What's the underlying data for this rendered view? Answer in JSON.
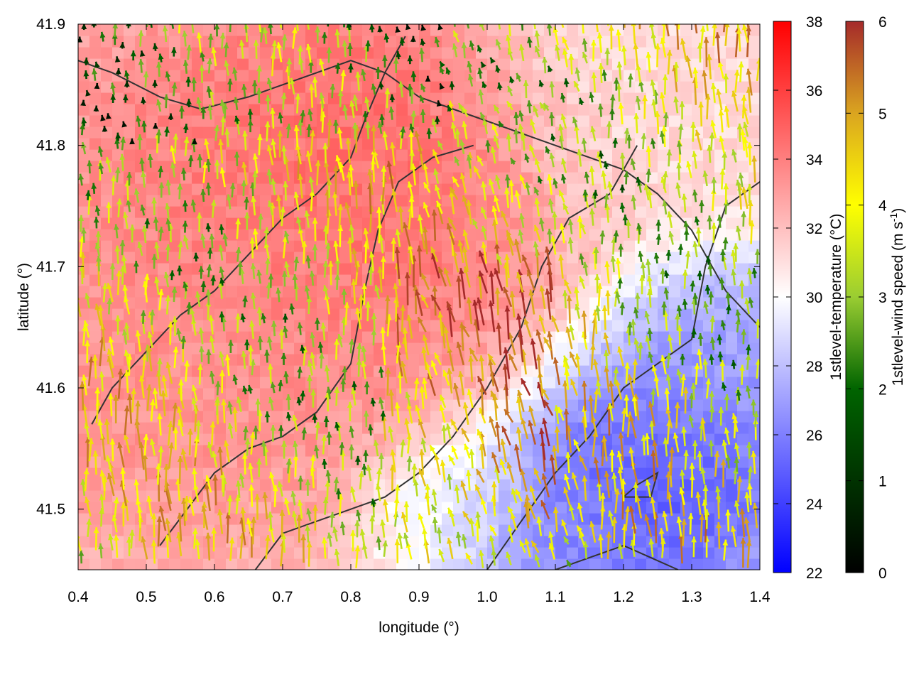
{
  "chart_data": {
    "type": "heatmap",
    "description": "Surface temperature field with wind vectors and boundary contours",
    "xlabel": "longitude (°)",
    "ylabel": "latitude (°)",
    "xlim": [
      0.4,
      1.4
    ],
    "ylim": [
      41.45,
      41.9
    ],
    "x_ticks": [
      "0.4",
      "0.5",
      "0.6",
      "0.7",
      "0.8",
      "0.9",
      "1.0",
      "1.1",
      "1.2",
      "1.3",
      "1.4"
    ],
    "y_ticks": [
      "41.5",
      "41.6",
      "41.7",
      "41.8",
      "41.9"
    ],
    "temperature_colorbar": {
      "label": "1stlevel-temperature (°C)",
      "range": [
        22,
        38
      ],
      "ticks": [
        "22",
        "24",
        "26",
        "28",
        "30",
        "32",
        "34",
        "36",
        "38"
      ],
      "colors": [
        "#0000ff",
        "#ffffff",
        "#ff0000"
      ]
    },
    "wind_colorbar": {
      "label": "1stlevel-wind speed (m s",
      "label_sup": "-1",
      "label_end": ")",
      "range": [
        0,
        6
      ],
      "ticks": [
        "0",
        "1",
        "2",
        "3",
        "4",
        "5",
        "6"
      ],
      "colors": [
        "#000000",
        "#006400",
        "#9acd32",
        "#ffff00",
        "#daa520",
        "#a52a2a"
      ]
    },
    "temperature_regions": [
      {
        "lon": 0.72,
        "lat": 41.75,
        "temp": 34.5,
        "spread": 0.28
      },
      {
        "lon": 0.55,
        "lat": 41.6,
        "temp": 33.5,
        "spread": 0.22
      },
      {
        "lon": 0.85,
        "lat": 41.8,
        "temp": 35.0,
        "spread": 0.18
      },
      {
        "lon": 1.25,
        "lat": 41.52,
        "temp": 24.0,
        "spread": 0.16
      },
      {
        "lon": 1.35,
        "lat": 41.62,
        "temp": 26.5,
        "spread": 0.14
      },
      {
        "lon": 1.1,
        "lat": 41.47,
        "temp": 26.0,
        "spread": 0.12
      },
      {
        "lon": 1.2,
        "lat": 41.85,
        "temp": 31.0,
        "spread": 0.2
      },
      {
        "lon": 0.95,
        "lat": 41.5,
        "temp": 29.5,
        "spread": 0.1
      }
    ],
    "contours": [
      [
        [
          0.4,
          41.87
        ],
        [
          0.45,
          41.86
        ],
        [
          0.52,
          41.84
        ],
        [
          0.58,
          41.83
        ],
        [
          0.65,
          41.84
        ],
        [
          0.7,
          41.85
        ],
        [
          0.75,
          41.86
        ],
        [
          0.8,
          41.87
        ],
        [
          0.85,
          41.86
        ],
        [
          0.9,
          41.84
        ],
        [
          0.95,
          41.83
        ],
        [
          1.0,
          41.82
        ],
        [
          1.05,
          41.81
        ],
        [
          1.1,
          41.8
        ],
        [
          1.15,
          41.79
        ],
        [
          1.2,
          41.78
        ],
        [
          1.25,
          41.76
        ],
        [
          1.3,
          41.73
        ],
        [
          1.35,
          41.68
        ],
        [
          1.4,
          41.65
        ]
      ],
      [
        [
          0.42,
          41.57
        ],
        [
          0.45,
          41.6
        ],
        [
          0.5,
          41.63
        ],
        [
          0.55,
          41.66
        ],
        [
          0.6,
          41.68
        ],
        [
          0.65,
          41.71
        ],
        [
          0.7,
          41.74
        ],
        [
          0.75,
          41.76
        ],
        [
          0.8,
          41.79
        ],
        [
          0.82,
          41.82
        ],
        [
          0.85,
          41.86
        ],
        [
          0.88,
          41.89
        ]
      ],
      [
        [
          0.52,
          41.47
        ],
        [
          0.56,
          41.5
        ],
        [
          0.6,
          41.53
        ],
        [
          0.65,
          41.55
        ],
        [
          0.7,
          41.56
        ],
        [
          0.75,
          41.58
        ],
        [
          0.8,
          41.62
        ],
        [
          0.82,
          41.68
        ],
        [
          0.84,
          41.73
        ],
        [
          0.87,
          41.77
        ],
        [
          0.92,
          41.79
        ],
        [
          0.98,
          41.8
        ]
      ],
      [
        [
          0.66,
          41.45
        ],
        [
          0.7,
          41.48
        ],
        [
          0.75,
          41.49
        ],
        [
          0.8,
          41.5
        ],
        [
          0.85,
          41.51
        ],
        [
          0.9,
          41.53
        ],
        [
          0.95,
          41.56
        ],
        [
          1.0,
          41.6
        ],
        [
          1.05,
          41.65
        ],
        [
          1.08,
          41.7
        ],
        [
          1.12,
          41.74
        ],
        [
          1.18,
          41.76
        ],
        [
          1.22,
          41.8
        ]
      ],
      [
        [
          1.0,
          41.45
        ],
        [
          1.05,
          41.49
        ],
        [
          1.1,
          41.53
        ],
        [
          1.15,
          41.56
        ],
        [
          1.2,
          41.6
        ],
        [
          1.25,
          41.62
        ],
        [
          1.3,
          41.64
        ],
        [
          1.32,
          41.7
        ],
        [
          1.35,
          41.75
        ],
        [
          1.4,
          41.77
        ]
      ],
      [
        [
          1.1,
          41.45
        ],
        [
          1.15,
          41.46
        ],
        [
          1.2,
          41.47
        ],
        [
          1.24,
          41.46
        ],
        [
          1.28,
          41.45
        ]
      ],
      [
        [
          1.2,
          41.51
        ],
        [
          1.22,
          41.52
        ],
        [
          1.25,
          41.53
        ],
        [
          1.24,
          41.51
        ],
        [
          1.2,
          41.51
        ]
      ]
    ],
    "wind_field": {
      "base_direction_deg": 100,
      "cells_x": 48,
      "cells_y": 36
    }
  }
}
